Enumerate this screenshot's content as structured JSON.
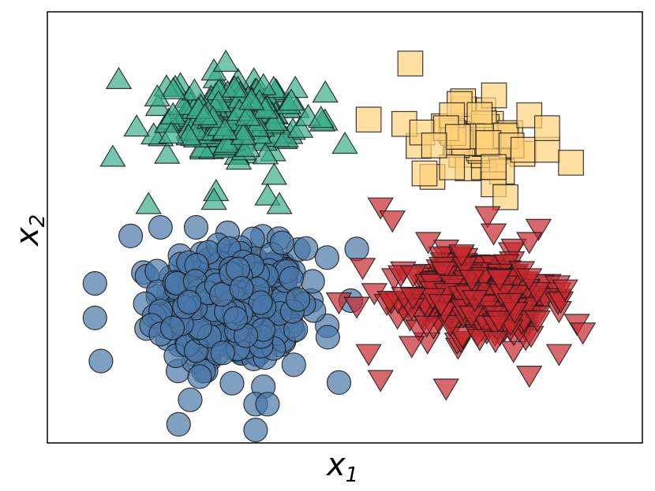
{
  "chart_data": {
    "type": "scatter",
    "title": "",
    "xlabel": "x",
    "xlabel_sub": "1",
    "ylabel": "x",
    "ylabel_sub": "2",
    "xlim": [
      0,
      10
    ],
    "ylim": [
      0,
      10
    ],
    "grid": false,
    "ticks": "none",
    "legend": "none",
    "series": [
      {
        "marker": "circle",
        "color": "#4a77a8",
        "center": [
          3.1,
          3.2
        ],
        "spread": [
          1.05,
          1.2
        ],
        "bounds": [
          0.8,
          5.4,
          0.3,
          5.4
        ],
        "count": 520,
        "points": [
          [
            0.8,
            3.7
          ],
          [
            0.8,
            2.9
          ],
          [
            0.9,
            1.9
          ],
          [
            1.4,
            4.8
          ],
          [
            1.9,
            5.0
          ],
          [
            2.5,
            5.0
          ],
          [
            4.7,
            4.3
          ],
          [
            5.2,
            4.5
          ],
          [
            5.1,
            3.3
          ],
          [
            4.9,
            1.4
          ],
          [
            3.5,
            0.9
          ],
          [
            3.5,
            0.3
          ],
          [
            3.7,
            0.9
          ],
          [
            2.4,
            1.0
          ]
        ]
      },
      {
        "marker": "triangle-up",
        "color": "#3aae8c",
        "center": [
          3.1,
          7.5
        ],
        "spread": [
          0.95,
          0.8
        ],
        "bounds": [
          1.1,
          5.1,
          5.4,
          8.9
        ],
        "count": 200,
        "points": [
          [
            1.2,
            8.4
          ],
          [
            1.1,
            6.6
          ],
          [
            1.5,
            7.3
          ],
          [
            1.7,
            5.5
          ],
          [
            2.8,
            8.6
          ],
          [
            3.0,
            8.8
          ],
          [
            4.1,
            7.9
          ],
          [
            4.6,
            7.5
          ],
          [
            5.0,
            6.9
          ],
          [
            3.7,
            5.7
          ],
          [
            3.9,
            5.5
          ],
          [
            2.8,
            5.6
          ]
        ]
      },
      {
        "marker": "square",
        "color": "#ffd27a",
        "center": [
          7.2,
          7.1
        ],
        "spread": [
          0.75,
          0.8
        ],
        "bounds": [
          5.3,
          8.8,
          5.5,
          8.8
        ],
        "count": 42,
        "points": [
          [
            6.1,
            8.8
          ],
          [
            5.4,
            7.5
          ],
          [
            6.0,
            7.4
          ],
          [
            6.3,
            7.2
          ],
          [
            6.8,
            7.6
          ],
          [
            7.5,
            6.0
          ],
          [
            7.7,
            5.7
          ],
          [
            7.8,
            6.9
          ],
          [
            8.0,
            6.8
          ],
          [
            8.4,
            6.8
          ],
          [
            8.8,
            6.5
          ],
          [
            8.1,
            7.6
          ],
          [
            8.4,
            7.3
          ],
          [
            7.5,
            6.4
          ],
          [
            6.7,
            7.3
          ],
          [
            6.9,
            7.1
          ],
          [
            6.5,
            6.9
          ]
        ]
      },
      {
        "marker": "triangle-down",
        "color": "#c8282e",
        "center": [
          7.3,
          3.4
        ],
        "spread": [
          1.05,
          0.85
        ],
        "bounds": [
          4.9,
          9.0,
          1.3,
          5.6
        ],
        "count": 420,
        "points": [
          [
            5.6,
            5.5
          ],
          [
            5.8,
            5.2
          ],
          [
            6.4,
            4.7
          ],
          [
            7.4,
            5.3
          ],
          [
            7.5,
            4.9
          ],
          [
            8.1,
            4.7
          ],
          [
            5.3,
            4.1
          ],
          [
            4.9,
            3.3
          ],
          [
            5.2,
            3.2
          ],
          [
            8.7,
            3.6
          ],
          [
            8.9,
            2.8
          ],
          [
            9.0,
            2.6
          ],
          [
            8.6,
            2.1
          ],
          [
            8.1,
            1.6
          ],
          [
            6.7,
            1.3
          ],
          [
            5.6,
            1.5
          ],
          [
            5.4,
            2.1
          ]
        ]
      }
    ]
  }
}
